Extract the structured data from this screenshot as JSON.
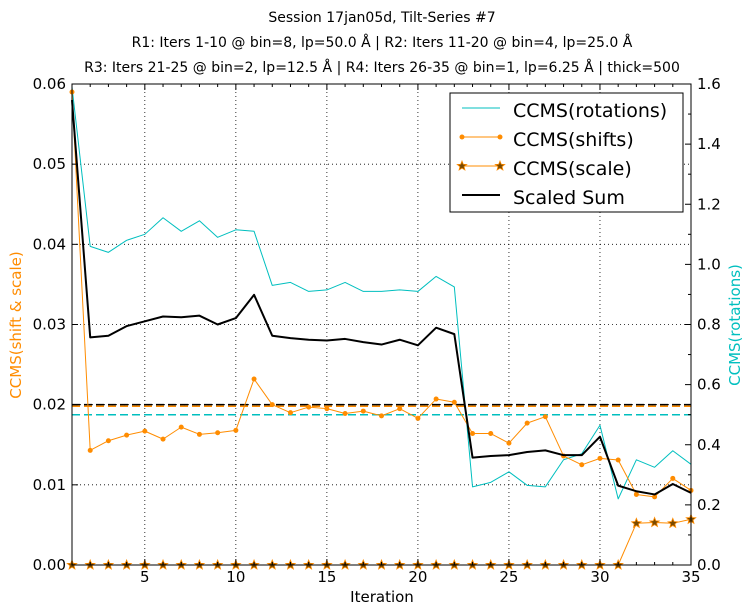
{
  "chart_data": {
    "type": "line",
    "title_lines": [
      "Session 17jan05d, Tilt-Series #7",
      "R1: Iters 1-10 @ bin=8, lp=50.0 Å | R2: Iters 11-20 @ bin=4, lp=25.0 Å",
      "R3: Iters 21-25 @ bin=2, lp=12.5 Å | R4: Iters 26-35 @ bin=1, lp=6.25 Å | thick=500"
    ],
    "xlabel": "Iteration",
    "ylabel_left": "CCMS(shift & scale)",
    "ylabel_right": "CCMS(rotations)",
    "xlim": [
      1,
      35
    ],
    "ylim_left": [
      0,
      0.06
    ],
    "ylim_right": [
      0,
      1.6
    ],
    "x_ticks": [
      5,
      10,
      15,
      20,
      25,
      30,
      35
    ],
    "x_tick_labels": [
      "5",
      "10",
      "15",
      "20",
      "25",
      "30",
      "35"
    ],
    "y_left_ticks": [
      0,
      0.01,
      0.02,
      0.03,
      0.04,
      0.05,
      0.06
    ],
    "y_left_tick_labels": [
      "0.00",
      "0.01",
      "0.02",
      "0.03",
      "0.04",
      "0.05",
      "0.06"
    ],
    "y_right_ticks": [
      0,
      0.2,
      0.4,
      0.6,
      0.8,
      1.0,
      1.2,
      1.4,
      1.6
    ],
    "y_right_tick_labels": [
      "0.0",
      "0.2",
      "0.4",
      "0.6",
      "0.8",
      "1.0",
      "1.2",
      "1.4",
      "1.6"
    ],
    "grid": true,
    "legend_position": "top-right",
    "x": [
      1,
      2,
      3,
      4,
      5,
      6,
      7,
      8,
      9,
      10,
      11,
      12,
      13,
      14,
      15,
      16,
      17,
      18,
      19,
      20,
      21,
      22,
      23,
      24,
      25,
      26,
      27,
      28,
      29,
      30,
      31,
      32,
      33,
      34,
      35
    ],
    "series": [
      {
        "name": "CCMS(rotations)",
        "axis": "right",
        "color": "#00bfbf",
        "marker": "none",
        "width": 1,
        "values": [
          1.59,
          1.06,
          1.04,
          1.08,
          1.1,
          1.155,
          1.11,
          1.145,
          1.09,
          1.115,
          1.11,
          0.93,
          0.94,
          0.91,
          0.915,
          0.94,
          0.91,
          0.91,
          0.915,
          0.91,
          0.96,
          0.925,
          0.26,
          0.275,
          0.31,
          0.265,
          0.26,
          0.35,
          0.37,
          0.465,
          0.22,
          0.35,
          0.325,
          0.38,
          0.335
        ]
      },
      {
        "name": "CCMS(shifts)",
        "axis": "left",
        "color": "#ff8c00",
        "marker": "dot",
        "width": 1,
        "values": [
          0.059,
          0.0143,
          0.0155,
          0.0162,
          0.0167,
          0.0157,
          0.0172,
          0.0163,
          0.0165,
          0.0168,
          0.0232,
          0.02,
          0.019,
          0.0197,
          0.0195,
          0.0189,
          0.0192,
          0.0186,
          0.0195,
          0.0183,
          0.0207,
          0.0203,
          0.0164,
          0.0164,
          0.0152,
          0.0177,
          0.0185,
          0.0136,
          0.0125,
          0.0133,
          0.0131,
          0.0088,
          0.0085,
          0.0108,
          0.0093
        ]
      },
      {
        "name": "CCMS(scale)",
        "axis": "left",
        "color": "#ff8c00",
        "marker": "star",
        "width": 1,
        "values": [
          0,
          0,
          0,
          0,
          0,
          0,
          0,
          0,
          0,
          0,
          0,
          0,
          0,
          0,
          0,
          0,
          0,
          0,
          0,
          0,
          0,
          0,
          0,
          0,
          0,
          0,
          0,
          0,
          0,
          0,
          0,
          0.0052,
          0.0053,
          0.0052,
          0.0057
        ]
      },
      {
        "name": "Scaled Sum",
        "axis": "left",
        "color": "#000000",
        "marker": "none",
        "width": 2,
        "values": [
          0.058,
          0.0284,
          0.0286,
          0.0298,
          0.0304,
          0.031,
          0.0309,
          0.0311,
          0.03,
          0.0308,
          0.0337,
          0.0286,
          0.0283,
          0.0281,
          0.028,
          0.0282,
          0.0278,
          0.0275,
          0.0281,
          0.0274,
          0.0296,
          0.0288,
          0.0134,
          0.0136,
          0.0137,
          0.0141,
          0.0143,
          0.0137,
          0.0137,
          0.016,
          0.0099,
          0.0092,
          0.0088,
          0.0101,
          0.009
        ]
      }
    ],
    "reference_lines": [
      {
        "axis": "left",
        "value": 0.02,
        "color": "#000000",
        "style": "dashed"
      },
      {
        "axis": "left",
        "value": 0.0198,
        "color": "#ff8c00",
        "style": "dashed"
      },
      {
        "axis": "right",
        "value": 0.5,
        "color": "#00bfbf",
        "style": "dashed"
      }
    ]
  }
}
